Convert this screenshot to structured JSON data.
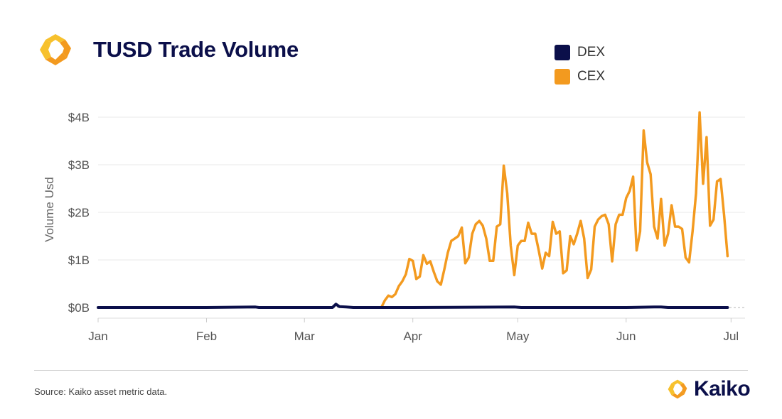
{
  "header": {
    "title": "TUSD Trade Volume",
    "logo_icon": "kaiko-logo-icon"
  },
  "colors": {
    "dex": "#0b0f4a",
    "cex": "#f39a1f",
    "logo_orange": "#f39a1f",
    "logo_yellow": "#f7c12d",
    "grid": "#e8e8e8",
    "text": "#555555"
  },
  "footer": {
    "source": "Source: Kaiko asset metric data.",
    "brand": "Kaiko"
  },
  "chart_data": {
    "type": "line",
    "title": "TUSD Trade Volume",
    "xlabel": "",
    "ylabel": "Volume Usd",
    "ylim": [
      0,
      4000000000
    ],
    "xlim": [
      "2023-01-01",
      "2023-07-05"
    ],
    "y_ticks": [
      0,
      1000000000,
      2000000000,
      3000000000,
      4000000000
    ],
    "y_tick_labels": [
      "$0B",
      "$1B",
      "$2B",
      "$3B",
      "$4B"
    ],
    "x_ticks": [
      "2023-01-01",
      "2023-02-01",
      "2023-03-01",
      "2023-04-01",
      "2023-05-01",
      "2023-06-01",
      "2023-07-01"
    ],
    "x_tick_labels": [
      "Jan",
      "Feb",
      "Mar",
      "Apr",
      "May",
      "Jun",
      "Jul"
    ],
    "grid": true,
    "legend": "top-right",
    "series": [
      {
        "name": "DEX",
        "color": "#0b0f4a",
        "points": [
          [
            "2023-01-01",
            0.0
          ],
          [
            "2023-02-01",
            0.0
          ],
          [
            "2023-02-15",
            0.01
          ],
          [
            "2023-02-16",
            0.0
          ],
          [
            "2023-03-01",
            0.0
          ],
          [
            "2023-03-09",
            0.0
          ],
          [
            "2023-03-10",
            0.07
          ],
          [
            "2023-03-11",
            0.02
          ],
          [
            "2023-03-13",
            0.01
          ],
          [
            "2023-03-15",
            0.0
          ],
          [
            "2023-04-01",
            0.0
          ],
          [
            "2023-04-30",
            0.01
          ],
          [
            "2023-05-02",
            0.0
          ],
          [
            "2023-06-01",
            0.0
          ],
          [
            "2023-06-09",
            0.01
          ],
          [
            "2023-06-11",
            0.01
          ],
          [
            "2023-06-13",
            0.0
          ],
          [
            "2023-06-30",
            0.0
          ]
        ]
      },
      {
        "name": "CEX",
        "color": "#f39a1f",
        "points": [
          [
            "2023-03-23",
            0.0
          ],
          [
            "2023-03-24",
            0.15
          ],
          [
            "2023-03-25",
            0.25
          ],
          [
            "2023-03-26",
            0.22
          ],
          [
            "2023-03-27",
            0.28
          ],
          [
            "2023-03-28",
            0.45
          ],
          [
            "2023-03-29",
            0.55
          ],
          [
            "2023-03-30",
            0.7
          ],
          [
            "2023-03-31",
            1.02
          ],
          [
            "2023-04-01",
            0.98
          ],
          [
            "2023-04-02",
            0.6
          ],
          [
            "2023-04-03",
            0.65
          ],
          [
            "2023-04-04",
            1.1
          ],
          [
            "2023-04-05",
            0.92
          ],
          [
            "2023-04-06",
            0.97
          ],
          [
            "2023-04-07",
            0.75
          ],
          [
            "2023-04-08",
            0.55
          ],
          [
            "2023-04-09",
            0.48
          ],
          [
            "2023-04-10",
            0.8
          ],
          [
            "2023-04-11",
            1.15
          ],
          [
            "2023-04-12",
            1.4
          ],
          [
            "2023-04-13",
            1.45
          ],
          [
            "2023-04-14",
            1.5
          ],
          [
            "2023-04-15",
            1.68
          ],
          [
            "2023-04-16",
            0.93
          ],
          [
            "2023-04-17",
            1.05
          ],
          [
            "2023-04-18",
            1.55
          ],
          [
            "2023-04-19",
            1.75
          ],
          [
            "2023-04-20",
            1.82
          ],
          [
            "2023-04-21",
            1.72
          ],
          [
            "2023-04-22",
            1.45
          ],
          [
            "2023-04-23",
            0.98
          ],
          [
            "2023-04-24",
            0.98
          ],
          [
            "2023-04-25",
            1.7
          ],
          [
            "2023-04-26",
            1.75
          ],
          [
            "2023-04-27",
            2.98
          ],
          [
            "2023-04-28",
            2.4
          ],
          [
            "2023-04-29",
            1.3
          ],
          [
            "2023-04-30",
            0.68
          ],
          [
            "2023-05-01",
            1.3
          ],
          [
            "2023-05-02",
            1.4
          ],
          [
            "2023-05-03",
            1.4
          ],
          [
            "2023-05-04",
            1.78
          ],
          [
            "2023-05-05",
            1.55
          ],
          [
            "2023-05-06",
            1.55
          ],
          [
            "2023-05-07",
            1.2
          ],
          [
            "2023-05-08",
            0.82
          ],
          [
            "2023-05-09",
            1.15
          ],
          [
            "2023-05-10",
            1.08
          ],
          [
            "2023-05-11",
            1.8
          ],
          [
            "2023-05-12",
            1.55
          ],
          [
            "2023-05-13",
            1.6
          ],
          [
            "2023-05-14",
            0.72
          ],
          [
            "2023-05-15",
            0.78
          ],
          [
            "2023-05-16",
            1.5
          ],
          [
            "2023-05-17",
            1.33
          ],
          [
            "2023-05-18",
            1.55
          ],
          [
            "2023-05-19",
            1.82
          ],
          [
            "2023-05-20",
            1.45
          ],
          [
            "2023-05-21",
            0.62
          ],
          [
            "2023-05-22",
            0.8
          ],
          [
            "2023-05-23",
            1.7
          ],
          [
            "2023-05-24",
            1.85
          ],
          [
            "2023-05-25",
            1.92
          ],
          [
            "2023-05-26",
            1.95
          ],
          [
            "2023-05-27",
            1.75
          ],
          [
            "2023-05-28",
            0.97
          ],
          [
            "2023-05-29",
            1.75
          ],
          [
            "2023-05-30",
            1.95
          ],
          [
            "2023-05-31",
            1.95
          ],
          [
            "2023-06-01",
            2.3
          ],
          [
            "2023-06-02",
            2.45
          ],
          [
            "2023-06-03",
            2.75
          ],
          [
            "2023-06-04",
            1.2
          ],
          [
            "2023-06-05",
            1.6
          ],
          [
            "2023-06-06",
            3.72
          ],
          [
            "2023-06-07",
            3.05
          ],
          [
            "2023-06-08",
            2.8
          ],
          [
            "2023-06-09",
            1.7
          ],
          [
            "2023-06-10",
            1.45
          ],
          [
            "2023-06-11",
            2.28
          ],
          [
            "2023-06-12",
            1.3
          ],
          [
            "2023-06-13",
            1.55
          ],
          [
            "2023-06-14",
            2.15
          ],
          [
            "2023-06-15",
            1.7
          ],
          [
            "2023-06-16",
            1.7
          ],
          [
            "2023-06-17",
            1.65
          ],
          [
            "2023-06-18",
            1.05
          ],
          [
            "2023-06-19",
            0.95
          ],
          [
            "2023-06-20",
            1.6
          ],
          [
            "2023-06-21",
            2.4
          ],
          [
            "2023-06-22",
            4.1
          ],
          [
            "2023-06-23",
            2.6
          ],
          [
            "2023-06-24",
            3.58
          ],
          [
            "2023-06-25",
            1.72
          ],
          [
            "2023-06-26",
            1.85
          ],
          [
            "2023-06-27",
            2.65
          ],
          [
            "2023-06-28",
            2.7
          ],
          [
            "2023-06-29",
            1.95
          ],
          [
            "2023-06-30",
            1.08
          ]
        ]
      }
    ]
  }
}
